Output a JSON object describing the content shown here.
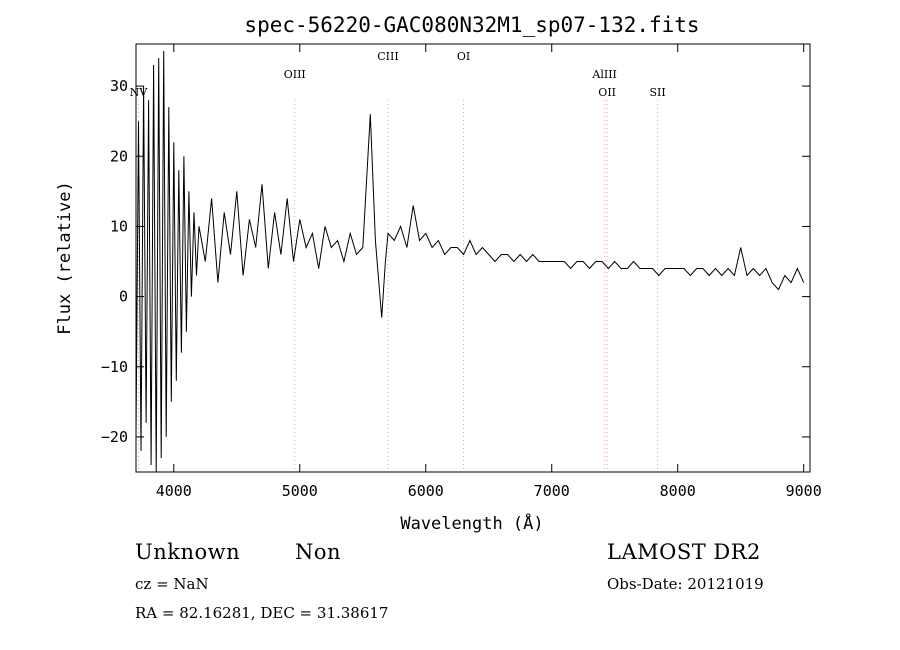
{
  "chart_data": {
    "type": "line",
    "title": "spec-56220-GAC080N32M1_sp07-132.fits",
    "xlabel": "Wavelength (Å)",
    "ylabel": "Flux (relative)",
    "xlim": [
      3700,
      9050
    ],
    "ylim": [
      -25,
      36
    ],
    "xticks": [
      4000,
      5000,
      6000,
      7000,
      8000,
      9000
    ],
    "yticks": [
      -20,
      -10,
      0,
      10,
      20,
      30
    ],
    "grid": false,
    "line_color": "#000000",
    "marker_color": "#ff9999",
    "series": [
      {
        "x": [
          3700,
          3720,
          3740,
          3760,
          3780,
          3800,
          3820,
          3840,
          3860,
          3880,
          3900,
          3920,
          3940,
          3960,
          3980,
          4000,
          4020,
          4040,
          4060,
          4080,
          4100,
          4120,
          4140,
          4160,
          4180,
          4200,
          4250,
          4300,
          4350,
          4400,
          4450,
          4500,
          4550,
          4600,
          4650,
          4700,
          4750,
          4800,
          4850,
          4900,
          4950,
          5000,
          5050,
          5100,
          5150,
          5200,
          5250,
          5300,
          5350,
          5400,
          5450,
          5500,
          5560,
          5600,
          5650,
          5680,
          5700,
          5750,
          5800,
          5850,
          5900,
          5950,
          6000,
          6050,
          6100,
          6150,
          6200,
          6250,
          6300,
          6350,
          6400,
          6450,
          6500,
          6550,
          6600,
          6650,
          6700,
          6750,
          6800,
          6850,
          6900,
          6950,
          7000,
          7050,
          7100,
          7150,
          7200,
          7250,
          7300,
          7350,
          7400,
          7450,
          7500,
          7550,
          7600,
          7650,
          7700,
          7750,
          7800,
          7850,
          7900,
          7950,
          8000,
          8050,
          8100,
          8150,
          8200,
          8250,
          8300,
          8350,
          8400,
          8450,
          8500,
          8550,
          8600,
          8650,
          8700,
          8750,
          8800,
          8850,
          8900,
          8950,
          9000
        ],
        "y": [
          -20,
          25,
          -22,
          30,
          -18,
          28,
          -24,
          33,
          -25,
          34,
          -23,
          35,
          -20,
          27,
          -15,
          22,
          -12,
          18,
          -8,
          20,
          -5,
          15,
          0,
          12,
          3,
          10,
          5,
          14,
          2,
          12,
          6,
          15,
          3,
          11,
          7,
          16,
          4,
          12,
          6,
          14,
          5,
          11,
          7,
          9,
          4,
          10,
          7,
          8,
          5,
          9,
          6,
          7,
          26,
          8,
          -3,
          5,
          9,
          8,
          10,
          7,
          13,
          8,
          9,
          7,
          8,
          6,
          7,
          7,
          6,
          8,
          6,
          7,
          6,
          5,
          6,
          6,
          5,
          6,
          5,
          6,
          5,
          5,
          5,
          5,
          5,
          4,
          5,
          5,
          4,
          5,
          5,
          4,
          5,
          4,
          4,
          5,
          4,
          4,
          4,
          3,
          4,
          4,
          4,
          4,
          3,
          4,
          4,
          3,
          4,
          3,
          4,
          3,
          7,
          3,
          4,
          3,
          4,
          2,
          1,
          3,
          2,
          4,
          2
        ]
      }
    ],
    "lines": [
      {
        "label": "NV",
        "x": 3720,
        "label_row": 2
      },
      {
        "label": "OIII",
        "x": 4960,
        "label_row": 1
      },
      {
        "label": "CIII",
        "x": 5700,
        "label_row": 0
      },
      {
        "label": "OI",
        "x": 6300,
        "label_row": 0
      },
      {
        "label": "AlIII",
        "x": 7420,
        "label_row": 1
      },
      {
        "label": "OII",
        "x": 7440,
        "label_row": 2
      },
      {
        "label": "SII",
        "x": 7840,
        "label_row": 2
      }
    ]
  },
  "info": {
    "class": "Unknown",
    "subclass": "Non",
    "survey": "LAMOST DR2",
    "cz": "cz = NaN",
    "obs_date": "Obs-Date: 20121019",
    "coords": "RA =  82.16281, DEC =  31.38617"
  }
}
